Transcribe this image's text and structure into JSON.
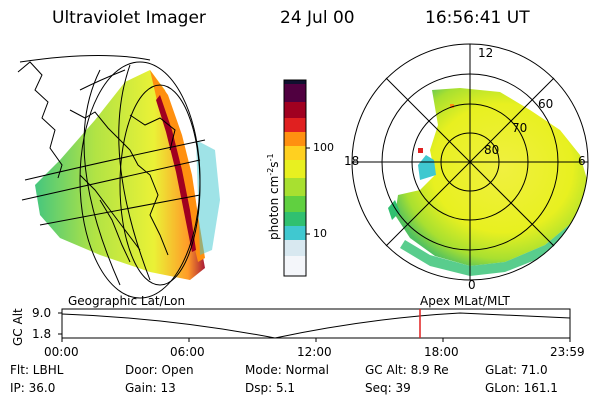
{
  "header": {
    "instrument": "Ultraviolet Imager",
    "date": "24 Jul 00",
    "time": "16:56:41 UT"
  },
  "colorbar": {
    "unit_text": "photon cm",
    "unit_exp1": "-2",
    "unit_s": "s",
    "unit_exp2": "-1",
    "tick_100": "100",
    "tick_10": "10",
    "colors": [
      "#ffffff",
      "#d8e8f0",
      "#40c8d0",
      "#30c070",
      "#60d040",
      "#a8e030",
      "#e8f020",
      "#f8f040",
      "#ffd020",
      "#ff9010",
      "#e02020",
      "#a00020",
      "#500040",
      "#101030"
    ]
  },
  "polar_plot": {
    "lat_labels": [
      "80",
      "70",
      "60"
    ],
    "mlt_labels": {
      "top": "12",
      "right": "6",
      "bottom": "0",
      "left": "18"
    }
  },
  "panels": {
    "geo_label": "Geographic Lat/Lon",
    "apex_label": "Apex MLat/MLT"
  },
  "timeline": {
    "ylabel": "GC Alt",
    "y_ticks": [
      "9.0",
      "1.8"
    ],
    "x_ticks": [
      "00:00",
      "06:00",
      "12:00",
      "18:00",
      "23:59"
    ],
    "marker_color": "#e02020",
    "marker_time": "16:56:41"
  },
  "info": {
    "row1": [
      "Flt: LBHL",
      "Door: Open",
      "Mode: Normal",
      "GC Alt: 8.9 Re",
      "GLat:  71.0"
    ],
    "row2": [
      "IP: 36.0",
      "Gain: 13",
      "Dsp:    5.1",
      "Seq: 39",
      "GLon: 161.1"
    ]
  }
}
